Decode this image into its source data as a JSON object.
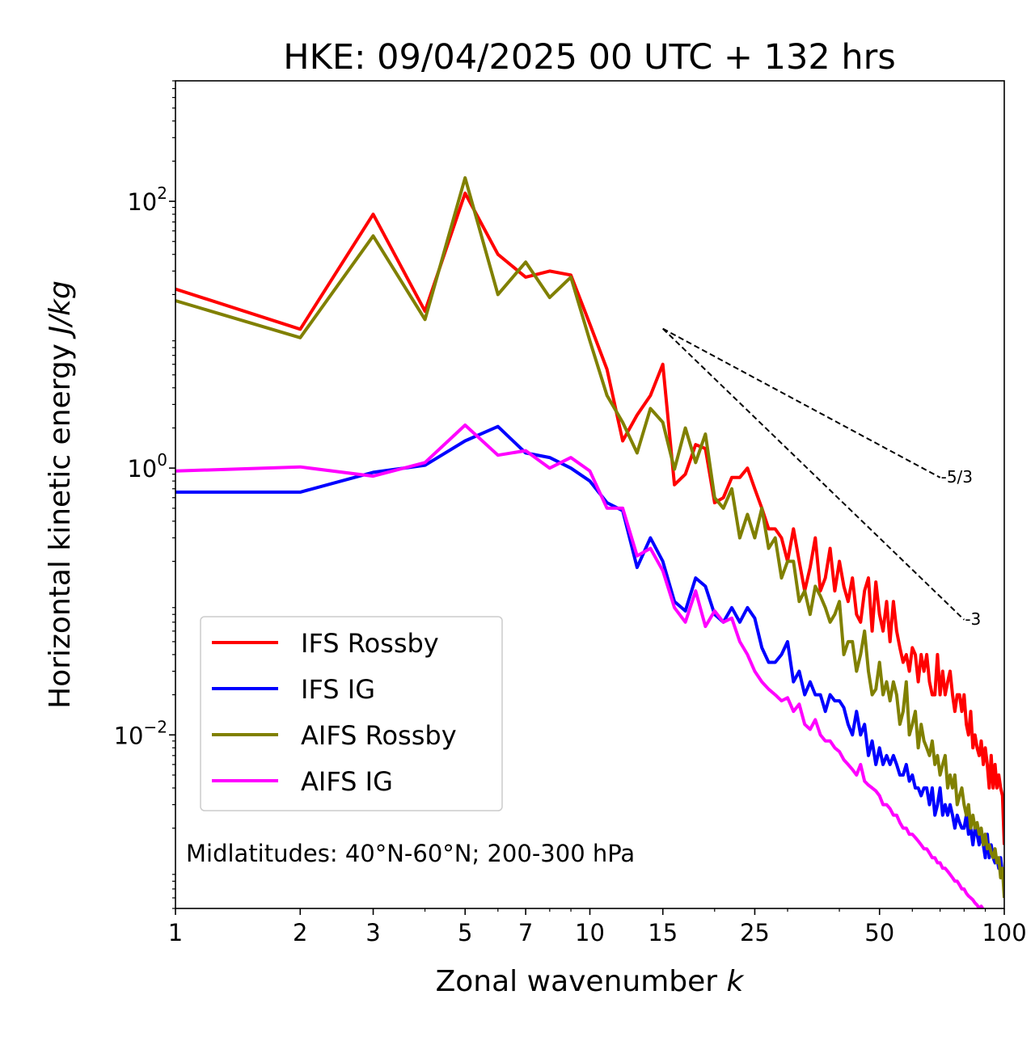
{
  "chart_data": {
    "type": "line",
    "title": "HKE: 09/04/2025 00 UTC + 132 hrs",
    "xlabel": "Zonal wavenumber ",
    "xlabel_var": "k",
    "ylabel": "Horizontal kinetic energy ",
    "ylabel_unit": "J/kg",
    "x_scale": "log",
    "y_scale": "log",
    "xlim": [
      1,
      100
    ],
    "ylim": [
      0.0005,
      800
    ],
    "x_ticks": [
      1,
      2,
      3,
      5,
      7,
      10,
      15,
      25,
      50,
      100
    ],
    "x_tick_labels": [
      "1",
      "2",
      "3",
      "5",
      "7",
      "10",
      "15",
      "25",
      "50",
      "100"
    ],
    "y_ticks": [
      {
        "value": 100,
        "base": "10",
        "exp": "2"
      },
      {
        "value": 1,
        "base": "10",
        "exp": "0"
      },
      {
        "value": 0.01,
        "base": "10",
        "exp": "−2"
      }
    ],
    "grid": false,
    "legend_position": "lower-left",
    "annotation": "Midlatitudes: 40°N-60°N; 200-300 hPa",
    "reference_slopes": [
      {
        "label": "-5/3",
        "x": [
          15,
          70
        ],
        "y": [
          11.1,
          0.85
        ]
      },
      {
        "label": "-3",
        "x": [
          15,
          80
        ],
        "y": [
          11.1,
          0.073
        ]
      }
    ],
    "series": [
      {
        "name": "IFS Rossby",
        "color": "#ff0000",
        "x": [
          1,
          2,
          3,
          4,
          5,
          6,
          7,
          8,
          9,
          10,
          11,
          12,
          13,
          14,
          15,
          16,
          17,
          18,
          19,
          20,
          21,
          22,
          23,
          24,
          25,
          26,
          27,
          28,
          29,
          30,
          31,
          32,
          33,
          34,
          35,
          36,
          37,
          38,
          39,
          40,
          41,
          42,
          43,
          44,
          45,
          46,
          47,
          48,
          49,
          50,
          51,
          52,
          53,
          54,
          55,
          56,
          57,
          58,
          59,
          60,
          61,
          62,
          63,
          64,
          65,
          66,
          67,
          68,
          69,
          70,
          71,
          72,
          73,
          74,
          75,
          76,
          77,
          78,
          79,
          80,
          81,
          82,
          83,
          84,
          85,
          86,
          87,
          88,
          89,
          90,
          91,
          92,
          93,
          94,
          95,
          96,
          97,
          98,
          99,
          100
        ],
        "y": [
          22,
          11,
          80,
          15,
          115,
          40,
          27,
          30,
          28,
          12,
          5.5,
          1.6,
          2.5,
          3.5,
          6.0,
          0.75,
          0.9,
          1.5,
          1.4,
          0.55,
          0.6,
          0.85,
          0.85,
          1.0,
          0.7,
          0.5,
          0.35,
          0.35,
          0.3,
          0.2,
          0.35,
          0.2,
          0.12,
          0.18,
          0.3,
          0.12,
          0.15,
          0.25,
          0.12,
          0.2,
          0.13,
          0.1,
          0.15,
          0.08,
          0.07,
          0.12,
          0.15,
          0.06,
          0.14,
          0.08,
          0.06,
          0.1,
          0.05,
          0.1,
          0.06,
          0.045,
          0.035,
          0.04,
          0.03,
          0.045,
          0.04,
          0.025,
          0.04,
          0.03,
          0.04,
          0.025,
          0.02,
          0.02,
          0.04,
          0.02,
          0.03,
          0.02,
          0.025,
          0.03,
          0.02,
          0.015,
          0.02,
          0.02,
          0.015,
          0.02,
          0.012,
          0.01,
          0.015,
          0.008,
          0.01,
          0.008,
          0.007,
          0.009,
          0.006,
          0.008,
          0.006,
          0.004,
          0.007,
          0.004,
          0.006,
          0.004,
          0.005,
          0.004,
          0.0035,
          0.0015
        ]
      },
      {
        "name": "IFS IG",
        "color": "#0000ff",
        "x": [
          1,
          2,
          3,
          4,
          5,
          6,
          7,
          8,
          9,
          10,
          11,
          12,
          13,
          14,
          15,
          16,
          17,
          18,
          19,
          20,
          21,
          22,
          23,
          24,
          25,
          26,
          27,
          28,
          29,
          30,
          31,
          32,
          33,
          34,
          35,
          36,
          37,
          38,
          39,
          40,
          41,
          42,
          43,
          44,
          45,
          46,
          47,
          48,
          49,
          50,
          51,
          52,
          53,
          54,
          55,
          56,
          57,
          58,
          59,
          60,
          61,
          62,
          63,
          64,
          65,
          66,
          67,
          68,
          69,
          70,
          71,
          72,
          73,
          74,
          75,
          76,
          77,
          78,
          79,
          80,
          81,
          82,
          83,
          84,
          85,
          86,
          87,
          88,
          89,
          90,
          91,
          92,
          93,
          94,
          95,
          96,
          97,
          98,
          99,
          100
        ],
        "y": [
          0.66,
          0.66,
          0.93,
          1.05,
          1.6,
          2.05,
          1.3,
          1.2,
          1.0,
          0.8,
          0.55,
          0.48,
          0.18,
          0.3,
          0.2,
          0.1,
          0.085,
          0.15,
          0.13,
          0.08,
          0.07,
          0.09,
          0.07,
          0.09,
          0.075,
          0.045,
          0.035,
          0.035,
          0.04,
          0.05,
          0.025,
          0.03,
          0.02,
          0.025,
          0.02,
          0.02,
          0.015,
          0.02,
          0.018,
          0.018,
          0.016,
          0.012,
          0.01,
          0.015,
          0.01,
          0.012,
          0.007,
          0.009,
          0.006,
          0.008,
          0.006,
          0.007,
          0.006,
          0.007,
          0.006,
          0.005,
          0.005,
          0.006,
          0.0045,
          0.005,
          0.004,
          0.004,
          0.0035,
          0.004,
          0.004,
          0.003,
          0.004,
          0.0025,
          0.003,
          0.004,
          0.0025,
          0.003,
          0.0025,
          0.003,
          0.0025,
          0.002,
          0.0025,
          0.0022,
          0.002,
          0.002,
          0.0025,
          0.0018,
          0.002,
          0.0015,
          0.002,
          0.0018,
          0.0015,
          0.0018,
          0.0015,
          0.0012,
          0.0018,
          0.0012,
          0.0015,
          0.0012,
          0.0011,
          0.0012,
          0.001,
          0.0012,
          0.0009,
          0.00085
        ]
      },
      {
        "name": "AIFS Rossby",
        "color": "#808000",
        "x": [
          1,
          2,
          3,
          4,
          5,
          6,
          7,
          8,
          9,
          10,
          11,
          12,
          13,
          14,
          15,
          16,
          17,
          18,
          19,
          20,
          21,
          22,
          23,
          24,
          25,
          26,
          27,
          28,
          29,
          30,
          31,
          32,
          33,
          34,
          35,
          36,
          37,
          38,
          39,
          40,
          41,
          42,
          43,
          44,
          45,
          46,
          47,
          48,
          49,
          50,
          51,
          52,
          53,
          54,
          55,
          56,
          57,
          58,
          59,
          60,
          61,
          62,
          63,
          64,
          65,
          66,
          67,
          68,
          69,
          70,
          71,
          72,
          73,
          74,
          75,
          76,
          77,
          78,
          79,
          80,
          81,
          82,
          83,
          84,
          85,
          86,
          87,
          88,
          89,
          90,
          91,
          92,
          93,
          94,
          95,
          96,
          97,
          98,
          99,
          100
        ],
        "y": [
          18,
          9.5,
          55,
          13,
          150,
          20,
          35,
          19,
          27,
          9,
          3.5,
          2.2,
          1.3,
          2.8,
          2.2,
          0.98,
          2.0,
          1.1,
          1.8,
          0.6,
          0.5,
          0.7,
          0.3,
          0.45,
          0.3,
          0.5,
          0.25,
          0.3,
          0.15,
          0.2,
          0.2,
          0.1,
          0.12,
          0.08,
          0.13,
          0.11,
          0.09,
          0.07,
          0.08,
          0.1,
          0.04,
          0.05,
          0.05,
          0.03,
          0.04,
          0.06,
          0.03,
          0.02,
          0.022,
          0.035,
          0.02,
          0.025,
          0.018,
          0.025,
          0.02,
          0.012,
          0.015,
          0.025,
          0.01,
          0.012,
          0.015,
          0.008,
          0.012,
          0.009,
          0.008,
          0.007,
          0.009,
          0.006,
          0.007,
          0.005,
          0.006,
          0.007,
          0.004,
          0.005,
          0.004,
          0.005,
          0.003,
          0.0035,
          0.004,
          0.003,
          0.0025,
          0.003,
          0.002,
          0.0025,
          0.002,
          0.0022,
          0.0018,
          0.002,
          0.0015,
          0.0018,
          0.0014,
          0.0015,
          0.0013,
          0.0012,
          0.0014,
          0.0011,
          0.0012,
          0.00085,
          0.001,
          0.0006
        ]
      },
      {
        "name": "AIFS IG",
        "color": "#ff00ff",
        "x": [
          1,
          2,
          3,
          4,
          5,
          6,
          7,
          8,
          9,
          10,
          11,
          12,
          13,
          14,
          15,
          16,
          17,
          18,
          19,
          20,
          21,
          22,
          23,
          24,
          25,
          26,
          27,
          28,
          29,
          30,
          31,
          32,
          33,
          34,
          35,
          36,
          37,
          38,
          39,
          40,
          41,
          42,
          43,
          44,
          45,
          46,
          47,
          48,
          49,
          50,
          51,
          52,
          53,
          54,
          55,
          56,
          57,
          58,
          59,
          60,
          61,
          62,
          63,
          64,
          65,
          66,
          67,
          68,
          69,
          70,
          71,
          72,
          73,
          74,
          75,
          76,
          77,
          78,
          79,
          80,
          81,
          82,
          83,
          84,
          85,
          86,
          87,
          88,
          89,
          90
        ],
        "y": [
          0.95,
          1.02,
          0.87,
          1.1,
          2.1,
          1.25,
          1.35,
          1.0,
          1.2,
          0.95,
          0.5,
          0.5,
          0.22,
          0.25,
          0.17,
          0.09,
          0.07,
          0.12,
          0.065,
          0.085,
          0.07,
          0.075,
          0.05,
          0.04,
          0.03,
          0.025,
          0.022,
          0.02,
          0.018,
          0.019,
          0.015,
          0.017,
          0.012,
          0.011,
          0.013,
          0.01,
          0.009,
          0.009,
          0.008,
          0.0075,
          0.0065,
          0.006,
          0.0055,
          0.005,
          0.006,
          0.0045,
          0.0042,
          0.004,
          0.0038,
          0.0035,
          0.003,
          0.003,
          0.0028,
          0.0025,
          0.0025,
          0.0022,
          0.002,
          0.002,
          0.0018,
          0.0018,
          0.0017,
          0.0016,
          0.0015,
          0.0014,
          0.0014,
          0.0013,
          0.0012,
          0.0012,
          0.0011,
          0.0011,
          0.001,
          0.001,
          0.00095,
          0.0009,
          0.00085,
          0.0008,
          0.0008,
          0.00075,
          0.0007,
          0.0007,
          0.00065,
          0.00062,
          0.0006,
          0.00058,
          0.00055,
          0.00053,
          0.0005,
          0.00052,
          0.00049,
          0.00047
        ]
      }
    ]
  }
}
